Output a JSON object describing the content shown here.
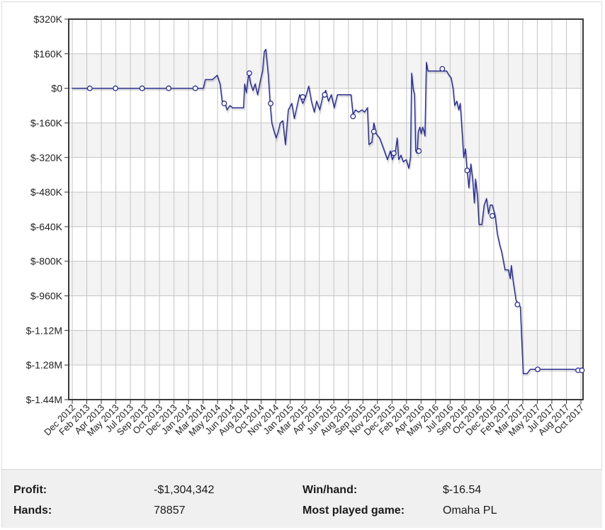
{
  "chart_data": {
    "type": "line",
    "title": "",
    "xlabel": "",
    "ylabel": "",
    "ylim": [
      -1440000,
      320000
    ],
    "y_ticks": [
      {
        "value": 320000,
        "label": "$320K"
      },
      {
        "value": 160000,
        "label": "$160K"
      },
      {
        "value": 0,
        "label": "$0"
      },
      {
        "value": -160000,
        "label": "$-160K"
      },
      {
        "value": -320000,
        "label": "$-320K"
      },
      {
        "value": -480000,
        "label": "$-480K"
      },
      {
        "value": -640000,
        "label": "$-640K"
      },
      {
        "value": -800000,
        "label": "$-800K"
      },
      {
        "value": -960000,
        "label": "$-960K"
      },
      {
        "value": -1120000,
        "label": "$-1.12M"
      },
      {
        "value": -1280000,
        "label": "$-1.28M"
      },
      {
        "value": -1440000,
        "label": "$-1.44M"
      }
    ],
    "x_ticks": [
      "Dec 2012",
      "Feb 2013",
      "Apr 2013",
      "May 2013",
      "Jul 2013",
      "Sep 2013",
      "Oct 2013",
      "Dec 2013",
      "Jan 2014",
      "Mar 2014",
      "May 2014",
      "Jun 2014",
      "Aug 2014",
      "Oct 2014",
      "Nov 2014",
      "Jan 2015",
      "Mar 2015",
      "Apr 2015",
      "Jun 2015",
      "Aug 2015",
      "Sep 2015",
      "Nov 2015",
      "Dec 2015",
      "Feb 2016",
      "Apr 2016",
      "May 2016",
      "Jul 2016",
      "Sep 2016",
      "Oct 2016",
      "Dec 2016",
      "Feb 2017",
      "Mar 2017",
      "May 2017",
      "Jul 2017",
      "Aug 2017",
      "Oct 2017"
    ],
    "grid": true,
    "line_color": "#2b2f8f",
    "series": [
      {
        "points": [
          [
            "2012-12-01",
            0
          ],
          [
            "2013-02-01",
            0
          ],
          [
            "2013-04-01",
            0
          ],
          [
            "2013-06-01",
            0
          ],
          [
            "2013-08-01",
            0
          ],
          [
            "2013-10-01",
            0
          ],
          [
            "2013-12-01",
            0
          ],
          [
            "2014-02-01",
            0
          ],
          [
            "2014-03-01",
            0
          ],
          [
            "2014-03-08",
            40000
          ],
          [
            "2014-04-01",
            40000
          ],
          [
            "2014-04-18",
            60000
          ],
          [
            "2014-04-28",
            20000
          ],
          [
            "2014-05-05",
            -60000
          ],
          [
            "2014-05-15",
            -70000
          ],
          [
            "2014-05-22",
            -100000
          ],
          [
            "2014-06-01",
            -80000
          ],
          [
            "2014-06-10",
            -90000
          ],
          [
            "2014-07-01",
            -90000
          ],
          [
            "2014-07-18",
            -90000
          ],
          [
            "2014-07-22",
            20000
          ],
          [
            "2014-07-28",
            -20000
          ],
          [
            "2014-08-05",
            70000
          ],
          [
            "2014-08-12",
            20000
          ],
          [
            "2014-08-20",
            -10000
          ],
          [
            "2014-08-27",
            20000
          ],
          [
            "2014-09-05",
            -30000
          ],
          [
            "2014-09-15",
            40000
          ],
          [
            "2014-09-22",
            80000
          ],
          [
            "2014-09-28",
            170000
          ],
          [
            "2014-10-03",
            180000
          ],
          [
            "2014-10-12",
            60000
          ],
          [
            "2014-10-18",
            -70000
          ],
          [
            "2014-10-24",
            -160000
          ],
          [
            "2014-11-01",
            -200000
          ],
          [
            "2014-11-08",
            -230000
          ],
          [
            "2014-11-15",
            -200000
          ],
          [
            "2014-11-22",
            -160000
          ],
          [
            "2014-12-01",
            -150000
          ],
          [
            "2014-12-10",
            -260000
          ],
          [
            "2014-12-20",
            -100000
          ],
          [
            "2015-01-01",
            -70000
          ],
          [
            "2015-01-10",
            -140000
          ],
          [
            "2015-01-18",
            -90000
          ],
          [
            "2015-01-28",
            -30000
          ],
          [
            "2015-02-08",
            -70000
          ],
          [
            "2015-02-18",
            -40000
          ],
          [
            "2015-03-01",
            10000
          ],
          [
            "2015-03-10",
            -60000
          ],
          [
            "2015-03-20",
            -110000
          ],
          [
            "2015-03-28",
            -60000
          ],
          [
            "2015-04-08",
            -100000
          ],
          [
            "2015-04-18",
            -40000
          ],
          [
            "2015-04-28",
            -10000
          ],
          [
            "2015-05-08",
            -60000
          ],
          [
            "2015-05-18",
            -30000
          ],
          [
            "2015-05-28",
            -90000
          ],
          [
            "2015-06-08",
            -30000
          ],
          [
            "2015-07-01",
            -30000
          ],
          [
            "2015-07-25",
            -30000
          ],
          [
            "2015-08-01",
            -120000
          ],
          [
            "2015-08-10",
            -100000
          ],
          [
            "2015-08-20",
            -110000
          ],
          [
            "2015-09-01",
            -100000
          ],
          [
            "2015-09-10",
            -110000
          ],
          [
            "2015-09-20",
            -90000
          ],
          [
            "2015-09-25",
            -260000
          ],
          [
            "2015-10-05",
            -250000
          ],
          [
            "2015-10-12",
            -160000
          ],
          [
            "2015-10-20",
            -210000
          ],
          [
            "2015-11-01",
            -230000
          ],
          [
            "2015-11-15",
            -280000
          ],
          [
            "2015-11-28",
            -330000
          ],
          [
            "2015-12-08",
            -290000
          ],
          [
            "2015-12-15",
            -330000
          ],
          [
            "2015-12-25",
            -300000
          ],
          [
            "2016-01-01",
            -230000
          ],
          [
            "2016-01-06",
            -330000
          ],
          [
            "2016-01-14",
            -310000
          ],
          [
            "2016-01-22",
            -340000
          ],
          [
            "2016-02-01",
            -330000
          ],
          [
            "2016-02-10",
            -370000
          ],
          [
            "2016-02-16",
            -320000
          ],
          [
            "2016-02-20",
            70000
          ],
          [
            "2016-02-25",
            0
          ],
          [
            "2016-03-01",
            -30000
          ],
          [
            "2016-03-05",
            -290000
          ],
          [
            "2016-03-10",
            -300000
          ],
          [
            "2016-03-14",
            -200000
          ],
          [
            "2016-03-19",
            -180000
          ],
          [
            "2016-03-24",
            -210000
          ],
          [
            "2016-03-29",
            -180000
          ],
          [
            "2016-04-03",
            -200000
          ],
          [
            "2016-04-06",
            -220000
          ],
          [
            "2016-04-11",
            120000
          ],
          [
            "2016-04-16",
            80000
          ],
          [
            "2016-05-01",
            80000
          ],
          [
            "2016-06-01",
            80000
          ],
          [
            "2016-06-20",
            80000
          ],
          [
            "2016-06-28",
            60000
          ],
          [
            "2016-07-05",
            50000
          ],
          [
            "2016-07-12",
            0
          ],
          [
            "2016-07-18",
            -80000
          ],
          [
            "2016-07-25",
            -60000
          ],
          [
            "2016-08-01",
            -100000
          ],
          [
            "2016-08-06",
            -70000
          ],
          [
            "2016-08-12",
            -190000
          ],
          [
            "2016-08-18",
            -320000
          ],
          [
            "2016-08-24",
            -280000
          ],
          [
            "2016-08-30",
            -380000
          ],
          [
            "2016-09-05",
            -460000
          ],
          [
            "2016-09-12",
            -350000
          ],
          [
            "2016-09-18",
            -420000
          ],
          [
            "2016-09-24",
            -530000
          ],
          [
            "2016-09-28",
            -420000
          ],
          [
            "2016-10-05",
            -500000
          ],
          [
            "2016-10-10",
            -630000
          ],
          [
            "2016-10-20",
            -630000
          ],
          [
            "2016-10-28",
            -540000
          ],
          [
            "2016-11-05",
            -510000
          ],
          [
            "2016-11-12",
            -580000
          ],
          [
            "2016-11-18",
            -540000
          ],
          [
            "2016-11-25",
            -540000
          ],
          [
            "2016-12-05",
            -590000
          ],
          [
            "2016-12-12",
            -670000
          ],
          [
            "2016-12-20",
            -720000
          ],
          [
            "2016-12-28",
            -760000
          ],
          [
            "2017-01-08",
            -840000
          ],
          [
            "2017-01-20",
            -840000
          ],
          [
            "2017-01-26",
            -880000
          ],
          [
            "2017-01-30",
            -820000
          ],
          [
            "2017-02-05",
            -890000
          ],
          [
            "2017-02-15",
            -980000
          ],
          [
            "2017-02-24",
            -1000000
          ],
          [
            "2017-03-02",
            -1010000
          ],
          [
            "2017-03-12",
            -1320000
          ],
          [
            "2017-03-25",
            -1320000
          ],
          [
            "2017-04-05",
            -1300000
          ],
          [
            "2017-05-01",
            -1300000
          ],
          [
            "2017-06-01",
            -1300000
          ],
          [
            "2017-07-01",
            -1300000
          ],
          [
            "2017-08-01",
            -1300000
          ],
          [
            "2017-09-01",
            -1300000
          ],
          [
            "2017-10-01",
            -1304342
          ]
        ],
        "markers": [
          [
            "2013-02-01",
            0
          ],
          [
            "2013-05-01",
            0
          ],
          [
            "2013-08-01",
            0
          ],
          [
            "2013-11-01",
            0
          ],
          [
            "2014-02-01",
            0
          ],
          [
            "2014-05-12",
            -70000
          ],
          [
            "2014-08-07",
            70000
          ],
          [
            "2014-10-20",
            -70000
          ],
          [
            "2015-02-08",
            -40000
          ],
          [
            "2015-04-25",
            -30000
          ],
          [
            "2015-08-01",
            -130000
          ],
          [
            "2015-10-12",
            -200000
          ],
          [
            "2015-12-20",
            -300000
          ],
          [
            "2016-03-16",
            -290000
          ],
          [
            "2016-06-05",
            90000
          ],
          [
            "2016-08-30",
            -380000
          ],
          [
            "2016-11-25",
            -590000
          ],
          [
            "2017-02-20",
            -1000000
          ],
          [
            "2017-05-01",
            -1300000
          ],
          [
            "2017-09-18",
            -1304342
          ],
          [
            "2017-10-01",
            -1304342
          ]
        ]
      }
    ]
  },
  "stats": {
    "profit_label": "Profit:",
    "profit_value": "-$1,304,342",
    "hands_label": "Hands:",
    "hands_value": "78857",
    "winhand_label": "Win/hand:",
    "winhand_value": "$-16.54",
    "game_label": "Most played game:",
    "game_value": "Omaha PL"
  }
}
